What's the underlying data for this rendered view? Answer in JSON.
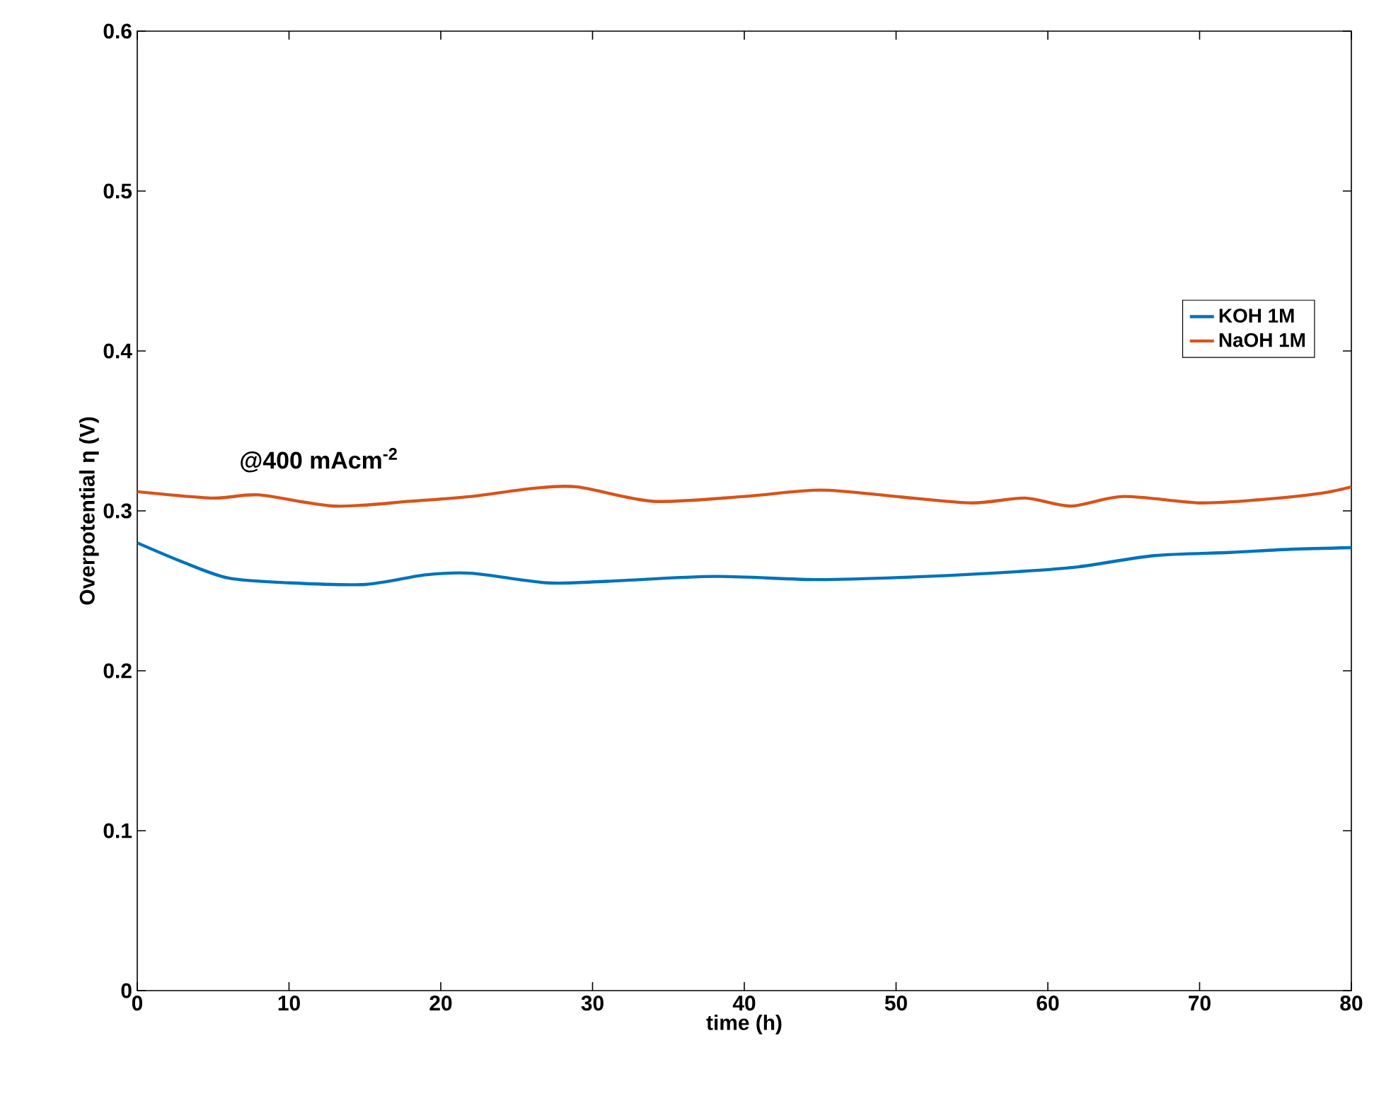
{
  "chart_data": {
    "type": "line",
    "xlabel": "time  (h)",
    "ylabel": "Overpotential η (V)",
    "annotations": [
      "@400 mAcm$^{-2}$"
    ],
    "xlim": [
      0,
      80
    ],
    "xticks": [
      0,
      10,
      20,
      30,
      40,
      50,
      60,
      70,
      80
    ],
    "ylim": [
      0,
      0.6
    ],
    "yticks": [
      0,
      0.1,
      0.2,
      0.3,
      0.4,
      0.5,
      0.6
    ],
    "legend": "right",
    "grid": false,
    "series": [
      {
        "name": "KOH 1M",
        "color": "#0072bd",
        "x": [
          0,
          3,
          6,
          10,
          15,
          19,
          22,
          27,
          31,
          38,
          45,
          52,
          58,
          62,
          67,
          72,
          76,
          80
        ],
        "values": [
          0.28,
          0.268,
          0.258,
          0.255,
          0.254,
          0.26,
          0.261,
          0.255,
          0.256,
          0.259,
          0.257,
          0.259,
          0.262,
          0.265,
          0.272,
          0.274,
          0.276,
          0.277
        ]
      },
      {
        "name": "NaOH 1M",
        "color": "#d95319",
        "x": [
          0,
          5,
          8,
          13,
          18,
          22,
          26,
          29,
          34,
          40,
          45,
          50,
          55,
          58.5,
          61.5,
          65,
          70,
          74,
          78,
          80
        ],
        "values": [
          0.312,
          0.308,
          0.31,
          0.303,
          0.306,
          0.309,
          0.314,
          0.315,
          0.306,
          0.309,
          0.313,
          0.309,
          0.305,
          0.308,
          0.303,
          0.309,
          0.305,
          0.307,
          0.311,
          0.315
        ]
      }
    ]
  }
}
